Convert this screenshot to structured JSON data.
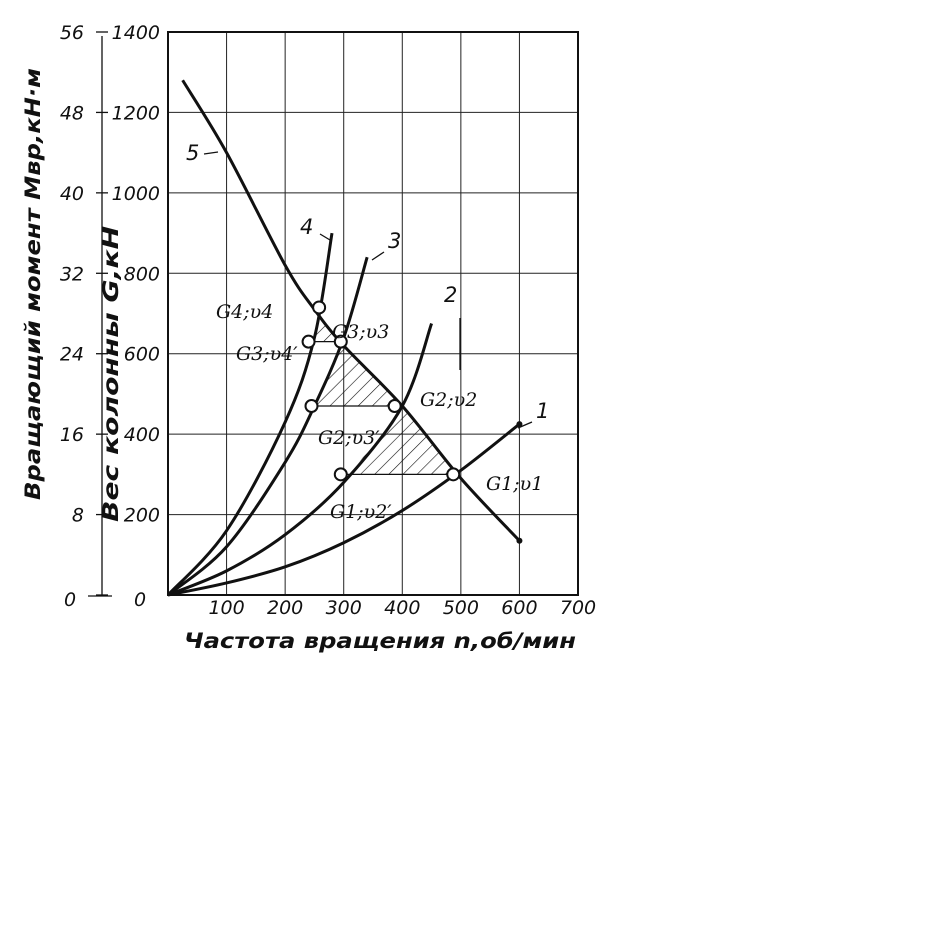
{
  "chart_data": {
    "type": "line",
    "title": "",
    "xlabel": "Частота вращения n,об/мин",
    "ylabel_inner": "Вес колонны G,кН",
    "ylabel_outer": "Вращающий момент Mвр,кН·м",
    "xlim": [
      0,
      700
    ],
    "ylim_inner": [
      0,
      1400
    ],
    "ylim_outer": [
      0,
      56
    ],
    "grid": true,
    "x_ticks": [
      "100",
      "200",
      "300",
      "400",
      "500",
      "600",
      "700"
    ],
    "x_zero_label": "0",
    "y_inner_ticks": [
      "0",
      "200",
      "400",
      "600",
      "800",
      "1000",
      "1200",
      "1400"
    ],
    "y_outer_ticks": [
      "0",
      "8",
      "16",
      "24",
      "32",
      "40",
      "48",
      "56"
    ],
    "series": [
      {
        "name": "1",
        "x": [
          0,
          100,
          200,
          300,
          400,
          500,
          600
        ],
        "y": [
          0,
          30,
          70,
          130,
          210,
          310,
          425
        ]
      },
      {
        "name": "2",
        "x": [
          0,
          100,
          200,
          300,
          400,
          450
        ],
        "y": [
          0,
          60,
          150,
          280,
          470,
          675
        ]
      },
      {
        "name": "3",
        "x": [
          0,
          100,
          200,
          250,
          300,
          340
        ],
        "y": [
          0,
          120,
          330,
          470,
          640,
          840
        ]
      },
      {
        "name": "4",
        "x": [
          0,
          100,
          200,
          250,
          280
        ],
        "y": [
          0,
          160,
          430,
          640,
          900
        ]
      },
      {
        "name": "5",
        "x": [
          25,
          100,
          200,
          250,
          300,
          400,
          500,
          600
        ],
        "y": [
          1280,
          1100,
          820,
          710,
          620,
          470,
          290,
          135
        ]
      }
    ],
    "points": [
      {
        "label": "G4;υ4",
        "x": 258,
        "y": 715
      },
      {
        "label": "G3;υ3",
        "x": 295,
        "y": 630
      },
      {
        "label": "G3;υ4′",
        "x": 240,
        "y": 630
      },
      {
        "label": "G2;υ2",
        "x": 387,
        "y": 470
      },
      {
        "label": "G2;υ3′",
        "x": 245,
        "y": 470
      },
      {
        "label": "G1;υ1",
        "x": 487,
        "y": 300
      },
      {
        "label": "G1;υ2′",
        "x": 295,
        "y": 300
      }
    ],
    "hatched_regions": [
      {
        "between": "4-5",
        "y_range": [
          630,
          715
        ]
      },
      {
        "between": "3-5",
        "y_range": [
          470,
          630
        ]
      },
      {
        "between": "2-5",
        "y_range": [
          300,
          470
        ]
      }
    ]
  }
}
